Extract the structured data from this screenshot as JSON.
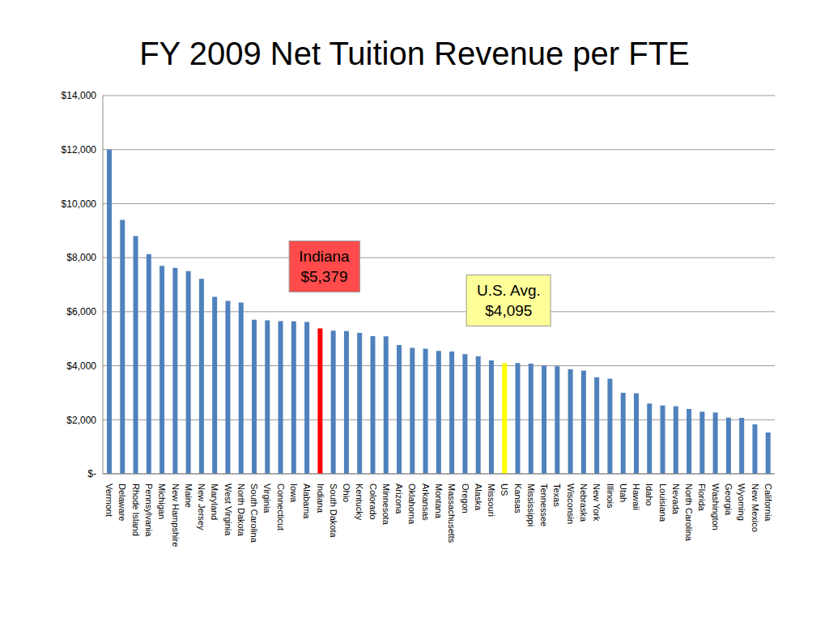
{
  "chart_data": {
    "type": "bar",
    "title": "FY 2009 Net Tuition Revenue per FTE",
    "categories": [
      "Vermont",
      "Delaware",
      "Rhode Island",
      "Pennsylvania",
      "Michigan",
      "New Hampshire",
      "Maine",
      "New Jersey",
      "Maryland",
      "West Virginia",
      "North Dakota",
      "South Carolina",
      "Virginia",
      "Connecticut",
      "Iowa",
      "Alabama",
      "Indiana",
      "South Dakota",
      "Ohio",
      "Kentucky",
      "Colorado",
      "Minnesota",
      "Arizona",
      "Oklahoma",
      "Arkansas",
      "Montana",
      "Massachusetts",
      "Oregon",
      "Alaska",
      "Missouri",
      "US",
      "Kansas",
      "Mississippi",
      "Tennessee",
      "Texas",
      "Wisconsin",
      "Nebraska",
      "New York",
      "Illinois",
      "Utah",
      "Hawaii",
      "Idaho",
      "Louisiana",
      "Nevada",
      "North Carolina",
      "Florida",
      "Washington",
      "Georgia",
      "Wyoming",
      "New Mexico",
      "California"
    ],
    "values": [
      12000,
      9400,
      8800,
      8130,
      7700,
      7620,
      7500,
      7220,
      6550,
      6400,
      6340,
      5700,
      5680,
      5650,
      5640,
      5620,
      5379,
      5300,
      5280,
      5220,
      5100,
      5090,
      4770,
      4660,
      4630,
      4550,
      4530,
      4430,
      4350,
      4200,
      4095,
      4100,
      4080,
      4000,
      3980,
      3870,
      3820,
      3570,
      3520,
      3000,
      2980,
      2600,
      2530,
      2500,
      2400,
      2300,
      2270,
      2080,
      2070,
      1830,
      1530
    ],
    "colors": [
      "#4f81bd",
      "#4f81bd",
      "#4f81bd",
      "#4f81bd",
      "#4f81bd",
      "#4f81bd",
      "#4f81bd",
      "#4f81bd",
      "#4f81bd",
      "#4f81bd",
      "#4f81bd",
      "#4f81bd",
      "#4f81bd",
      "#4f81bd",
      "#4f81bd",
      "#4f81bd",
      "#ff0000",
      "#4f81bd",
      "#4f81bd",
      "#4f81bd",
      "#4f81bd",
      "#4f81bd",
      "#4f81bd",
      "#4f81bd",
      "#4f81bd",
      "#4f81bd",
      "#4f81bd",
      "#4f81bd",
      "#4f81bd",
      "#4f81bd",
      "#ffff00",
      "#4f81bd",
      "#4f81bd",
      "#4f81bd",
      "#4f81bd",
      "#4f81bd",
      "#4f81bd",
      "#4f81bd",
      "#4f81bd",
      "#4f81bd",
      "#4f81bd",
      "#4f81bd",
      "#4f81bd",
      "#4f81bd",
      "#4f81bd",
      "#4f81bd",
      "#4f81bd",
      "#4f81bd",
      "#4f81bd",
      "#4f81bd",
      "#4f81bd"
    ],
    "ylim": [
      0,
      14000
    ],
    "yticks": [
      {
        "value": 0,
        "label": "$-"
      },
      {
        "value": 2000,
        "label": "$2,000"
      },
      {
        "value": 4000,
        "label": "$4,000"
      },
      {
        "value": 6000,
        "label": "$6,000"
      },
      {
        "value": 8000,
        "label": "$8,000"
      },
      {
        "value": 10000,
        "label": "$10,000"
      },
      {
        "value": 12000,
        "label": "$12,000"
      },
      {
        "value": 14000,
        "label": "$14,000"
      }
    ],
    "grid": true,
    "annotations": [
      {
        "text": "Indiana",
        "value_label": "$5,379",
        "value": 5379,
        "color": "#ff4b4b"
      },
      {
        "text": "U.S. Avg.",
        "value_label": "$4,095",
        "value": 4095,
        "color": "#ffff99"
      }
    ]
  }
}
